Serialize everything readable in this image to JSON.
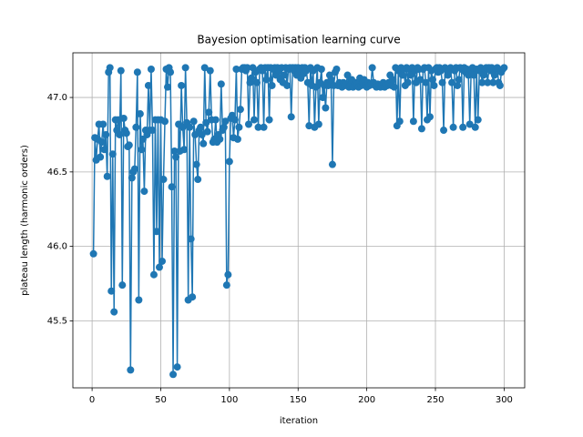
{
  "chart_data": {
    "type": "line",
    "title": "Bayesion optimisation learning curve",
    "xlabel": "iteration",
    "ylabel": "plateau length (harmonic orders)",
    "color": "#1f77b4",
    "grid": true,
    "marker": "circle",
    "xlim": [
      -14,
      315
    ],
    "ylim": [
      45.05,
      47.3
    ],
    "xticks": [
      0,
      50,
      100,
      150,
      200,
      250,
      300
    ],
    "yticks": [
      45.5,
      {
        "value": 46,
        "label": "46.0"
      },
      46.5,
      {
        "value": 47,
        "label": "47.0"
      }
    ],
    "x": [
      1,
      2,
      3,
      4,
      5,
      6,
      7,
      8,
      9,
      10,
      11,
      12,
      13,
      14,
      15,
      16,
      17,
      18,
      19,
      20,
      21,
      22,
      23,
      24,
      25,
      26,
      27,
      28,
      29,
      30,
      31,
      32,
      33,
      34,
      35,
      36,
      37,
      38,
      39,
      40,
      41,
      42,
      43,
      44,
      45,
      46,
      47,
      48,
      49,
      50,
      51,
      52,
      53,
      54,
      55,
      56,
      57,
      58,
      59,
      60,
      61,
      62,
      63,
      64,
      65,
      66,
      67,
      68,
      69,
      70,
      71,
      72,
      73,
      74,
      75,
      76,
      77,
      78,
      79,
      80,
      81,
      82,
      83,
      84,
      85,
      86,
      87,
      88,
      89,
      90,
      91,
      92,
      93,
      94,
      95,
      96,
      97,
      98,
      99,
      100,
      101,
      102,
      103,
      104,
      105,
      106,
      107,
      108,
      109,
      110,
      111,
      112,
      113,
      114,
      115,
      116,
      117,
      118,
      119,
      120,
      121,
      122,
      123,
      124,
      125,
      126,
      127,
      128,
      129,
      130,
      131,
      132,
      133,
      134,
      135,
      136,
      137,
      138,
      139,
      140,
      141,
      142,
      143,
      144,
      145,
      146,
      147,
      148,
      149,
      150,
      151,
      152,
      153,
      154,
      155,
      156,
      157,
      158,
      159,
      160,
      161,
      162,
      163,
      164,
      165,
      166,
      167,
      168,
      169,
      170,
      171,
      172,
      173,
      174,
      175,
      176,
      177,
      178,
      179,
      180,
      181,
      182,
      183,
      184,
      185,
      186,
      187,
      188,
      189,
      190,
      191,
      192,
      193,
      194,
      195,
      196,
      197,
      198,
      199,
      200,
      201,
      202,
      203,
      204,
      205,
      206,
      207,
      208,
      209,
      210,
      211,
      212,
      213,
      214,
      215,
      216,
      217,
      218,
      219,
      220,
      221,
      222,
      223,
      224,
      225,
      226,
      227,
      228,
      229,
      230,
      231,
      232,
      233,
      234,
      235,
      236,
      237,
      238,
      239,
      240,
      241,
      242,
      243,
      244,
      245,
      246,
      247,
      248,
      249,
      250,
      251,
      252,
      253,
      254,
      255,
      256,
      257,
      258,
      259,
      260,
      261,
      262,
      263,
      264,
      265,
      266,
      267,
      268,
      269,
      270,
      271,
      272,
      273,
      274,
      275,
      276,
      277,
      278,
      279,
      280,
      281,
      282,
      283,
      284,
      285,
      286,
      287,
      288,
      289,
      290,
      291,
      292,
      293,
      294,
      295,
      296,
      297,
      298,
      299,
      300
    ],
    "values": [
      45.95,
      46.73,
      46.58,
      46.72,
      46.82,
      46.6,
      46.7,
      46.82,
      46.65,
      46.75,
      46.47,
      47.17,
      47.2,
      45.7,
      46.62,
      45.56,
      46.85,
      46.78,
      46.85,
      46.75,
      47.18,
      45.74,
      46.86,
      46.78,
      46.76,
      46.67,
      46.68,
      45.17,
      46.46,
      46.5,
      46.52,
      46.8,
      47.17,
      45.64,
      46.89,
      46.65,
      46.72,
      46.37,
      46.78,
      46.75,
      47.08,
      46.78,
      47.19,
      46.78,
      45.81,
      46.85,
      46.1,
      46.85,
      45.86,
      46.85,
      45.9,
      46.45,
      46.84,
      47.19,
      47.07,
      47.2,
      47.17,
      46.4,
      45.14,
      46.64,
      46.6,
      45.19,
      46.82,
      46.64,
      47.08,
      46.8,
      46.65,
      47.2,
      46.83,
      45.64,
      46.8,
      46.05,
      45.66,
      46.84,
      46.75,
      46.55,
      46.45,
      46.78,
      46.8,
      46.75,
      46.69,
      47.2,
      46.83,
      46.77,
      46.9,
      47.18,
      46.85,
      46.7,
      46.72,
      46.85,
      46.7,
      46.75,
      46.72,
      47.09,
      46.78,
      46.8,
      46.84,
      45.74,
      45.81,
      46.57,
      46.86,
      46.88,
      46.73,
      46.85,
      47.19,
      46.72,
      46.8,
      46.92,
      47.19,
      47.2,
      47.2,
      47.18,
      47.2,
      46.82,
      47.1,
      47.13,
      47.2,
      46.85,
      47.17,
      47.1,
      46.8,
      47.19,
      47.2,
      47.18,
      46.8,
      47.2,
      47.12,
      47.2,
      46.85,
      47.2,
      47.08,
      47.19,
      47.2,
      47.15,
      47.2,
      47.18,
      47.12,
      47.2,
      47.1,
      47.15,
      47.2,
      47.08,
      47.19,
      47.2,
      46.87,
      47.2,
      47.18,
      47.2,
      47.15,
      47.2,
      47.19,
      47.13,
      47.2,
      47.16,
      47.2,
      47.18,
      47.1,
      46.81,
      47.2,
      47.08,
      47.18,
      46.8,
      47.07,
      47.2,
      46.82,
      47.1,
      47.19,
      47.0,
      47.08,
      46.93,
      47.1,
      47.08,
      47.15,
      47.12,
      46.55,
      47.08,
      47.17,
      47.19,
      47.08,
      47.1,
      47.08,
      47.07,
      47.1,
      47.08,
      47.09,
      47.15,
      47.07,
      47.08,
      47.12,
      47.07,
      47.08,
      47.1,
      47.09,
      47.07,
      47.13,
      47.08,
      47.1,
      47.12,
      47.08,
      47.07,
      47.1,
      47.08,
      47.09,
      47.2,
      47.1,
      47.08,
      47.07,
      47.09,
      47.08,
      47.07,
      47.08,
      47.1,
      47.07,
      47.09,
      47.08,
      47.1,
      47.15,
      47.08,
      47.12,
      47.07,
      47.2,
      46.81,
      47.18,
      46.84,
      47.2,
      47.15,
      47.19,
      47.08,
      47.2,
      47.1,
      47.19,
      47.15,
      47.2,
      46.84,
      47.18,
      47.1,
      47.2,
      47.19,
      47.12,
      46.79,
      47.19,
      47.2,
      47.1,
      46.85,
      47.2,
      46.87,
      47.18,
      47.12,
      47.08,
      47.19,
      47.2,
      47.17,
      47.2,
      47.18,
      47.1,
      46.78,
      47.2,
      47.19,
      47.15,
      47.18,
      47.2,
      47.1,
      46.8,
      47.18,
      47.2,
      47.08,
      47.12,
      47.2,
      47.19,
      46.8,
      47.2,
      47.17,
      47.19,
      47.15,
      46.82,
      47.18,
      47.2,
      47.15,
      46.8,
      47.19,
      46.85,
      47.18,
      47.2,
      47.1,
      47.15,
      47.19,
      47.2,
      47.1,
      47.2,
      47.18,
      47.2,
      47.1,
      47.15,
      47.19,
      47.2,
      47.1,
      47.08,
      47.17,
      47.19,
      47.2
    ]
  }
}
